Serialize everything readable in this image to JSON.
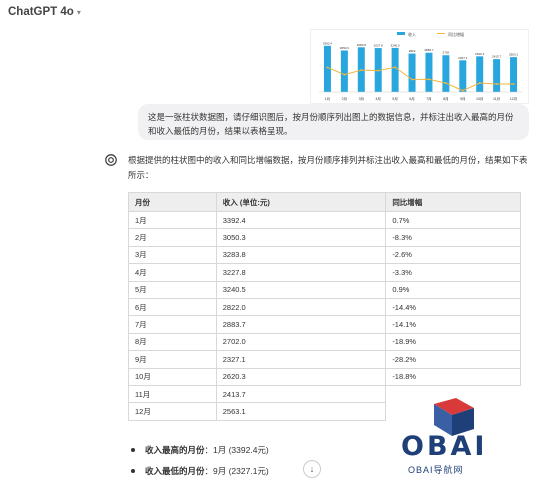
{
  "header": {
    "model_name": "ChatGPT 4o"
  },
  "attachment": {
    "legend": [
      "收入",
      "同比增幅"
    ],
    "colors": {
      "bar": "#29a6de",
      "line": "#f2b63a"
    }
  },
  "chart_data": {
    "type": "bar",
    "title": "",
    "categories": [
      "1月",
      "2月",
      "3月",
      "4月",
      "5月",
      "6月",
      "7月",
      "8月",
      "9月",
      "10月",
      "11月",
      "12月"
    ],
    "series": [
      {
        "name": "收入",
        "values": [
          3392.4,
          3050.3,
          3283.8,
          3227.8,
          3240.5,
          2822.0,
          2883.7,
          2702.0,
          2327.1,
          2620.3,
          2413.7,
          2563.1
        ]
      },
      {
        "name": "同比增幅",
        "values": [
          0.7,
          -8.3,
          -2.6,
          -3.3,
          0.9,
          -14.4,
          -14.1,
          -18.9,
          -28.2,
          -18.8,
          -20.0,
          -20.0
        ]
      }
    ]
  },
  "user_message": "这是一张柱状数据图，请仔细识图后，按月份顺序列出图上的数据信息，并标注出收入最高的月份和收入最低的月份，结果以表格呈现。",
  "assistant": {
    "intro": "根据提供的柱状图中的收入和同比增幅数据，按月份顺序排列并标注出收入最高和最低的月份，结果如下表所示：",
    "table": {
      "headers": [
        "月份",
        "收入 (单位:元)",
        "同比增幅"
      ],
      "rows": [
        [
          "1月",
          "3392.4",
          "0.7%"
        ],
        [
          "2月",
          "3050.3",
          "-8.3%"
        ],
        [
          "3月",
          "3283.8",
          "-2.6%"
        ],
        [
          "4月",
          "3227.8",
          "-3.3%"
        ],
        [
          "5月",
          "3240.5",
          "0.9%"
        ],
        [
          "6月",
          "2822.0",
          "-14.4%"
        ],
        [
          "7月",
          "2883.7",
          "-14.1%"
        ],
        [
          "8月",
          "2702.0",
          "-18.9%"
        ],
        [
          "9月",
          "2327.1",
          "-28.2%"
        ],
        [
          "10月",
          "2620.3",
          "-18.8%"
        ],
        [
          "11月",
          "2413.7",
          ""
        ],
        [
          "12月",
          "2563.1",
          ""
        ]
      ]
    },
    "bullets": [
      {
        "label": "收入最高的月份",
        "value": "：1月 (3392.4元)"
      },
      {
        "label": "收入最低的月份",
        "value": "：9月 (2327.1元)"
      }
    ]
  },
  "watermark": {
    "text": "OBAI",
    "subtitle": "OBAI导航网"
  }
}
